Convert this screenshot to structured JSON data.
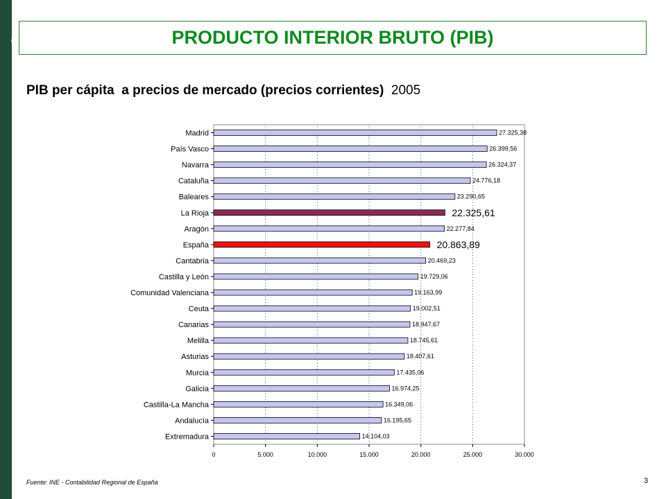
{
  "slide": {
    "title": "PRODUCTO INTERIOR BRUTO (PIB)",
    "subtitle_bold": "PIB per cápita  a precios de mercado (precios corrientes)",
    "subtitle_year": "2005",
    "source": "Fuente: INE - Contabilidad Regional de España",
    "page_number": "3"
  },
  "colors": {
    "sidebar": "#1f4d3a",
    "title": "#0d8a1f",
    "bar_default": "#c6c6f2",
    "bar_la_rioja": "#8b2a55",
    "bar_espana": "#ee1111"
  },
  "chart_data": {
    "type": "bar",
    "orientation": "horizontal",
    "categories": [
      "Madrid",
      "País Vasco",
      "Navarra",
      "Cataluña",
      "Baleares",
      "La Rioja",
      "Aragón",
      "España",
      "Cantabria",
      "Castilla y León",
      "Comunidad Valenciana",
      "Ceuta",
      "Canarias",
      "Melilla",
      "Asturias",
      "Murcia",
      "Galicia",
      "Castilla-La Mancha",
      "Andalucía",
      "Extremadura"
    ],
    "values": [
      27325.38,
      26399.56,
      26324.37,
      24776.18,
      23290.65,
      22325.61,
      22277.84,
      20863.89,
      20469.23,
      19729.06,
      19163.99,
      19002.51,
      18947.67,
      18745.61,
      18407.61,
      17435.06,
      16974.25,
      16349.06,
      16195.65,
      14104.03
    ],
    "value_labels": [
      "27.325,38",
      "26.399,56",
      "26.324,37",
      "24.776,18",
      "23.290,65",
      "22.325,61",
      "22.277,84",
      "20.863,89",
      "20.469,23",
      "19.729,06",
      "19.163,99",
      "19.002,51",
      "18.947,67",
      "18.745,61",
      "18.407,61",
      "17.435,06",
      "16.974,25",
      "16.349,06",
      "16.195,65",
      "14.104,03"
    ],
    "highlight": {
      "La Rioja": "bar_la_rioja",
      "España": "bar_espana"
    },
    "xlim": [
      0,
      30000
    ],
    "xticks": [
      0,
      5000,
      10000,
      15000,
      20000,
      25000,
      30000
    ],
    "xtick_labels": [
      "0",
      "5.000",
      "10.000",
      "15.000",
      "20.000",
      "25.000",
      "30.000"
    ],
    "grid": "vertical dotted"
  }
}
